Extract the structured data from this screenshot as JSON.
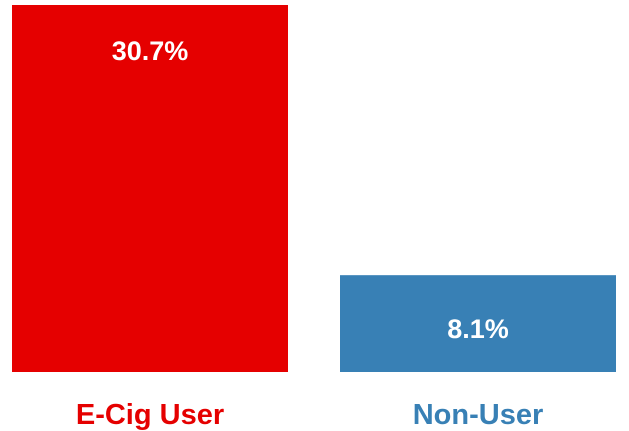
{
  "chart_data": {
    "type": "bar",
    "categories": [
      "E-Cig User",
      "Non-User"
    ],
    "values": [
      30.7,
      8.1
    ],
    "value_labels": [
      "30.7%",
      "8.1%"
    ],
    "colors": [
      "#e50000",
      "#3880b5"
    ],
    "ylim": [
      0,
      30.7
    ],
    "grid": false,
    "legend": "none"
  }
}
